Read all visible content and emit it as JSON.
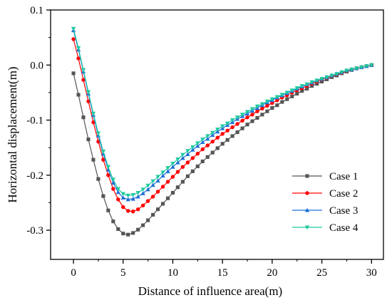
{
  "chart_data": {
    "type": "line",
    "xlabel": "Distance of influence area(m)",
    "ylabel": "Horizontal displacement(m)",
    "xlim": [
      -2.3,
      31.2
    ],
    "ylim": [
      -0.353,
      0.1
    ],
    "x_ticks": [
      0,
      5,
      10,
      15,
      20,
      25,
      30
    ],
    "y_ticks": [
      0.1,
      0.0,
      -0.1,
      -0.2,
      -0.3
    ],
    "x_tick_labels": [
      "0",
      "5",
      "10",
      "15",
      "20",
      "25",
      "30"
    ],
    "y_tick_labels": [
      "0.1",
      "0.0",
      "-0.1",
      "-0.2",
      "-0.3"
    ],
    "legend_position": "lower-right",
    "grid": false,
    "x": [
      0,
      0.5,
      1,
      1.5,
      2,
      2.5,
      3,
      3.5,
      4,
      4.5,
      5,
      5.5,
      6,
      6.5,
      7,
      7.5,
      8,
      8.5,
      9,
      9.5,
      10,
      10.5,
      11,
      11.5,
      12,
      12.5,
      13,
      13.5,
      14,
      14.5,
      15,
      15.5,
      16,
      16.5,
      17,
      17.5,
      18,
      18.5,
      19,
      19.5,
      20,
      20.5,
      21,
      21.5,
      22,
      22.5,
      23,
      23.5,
      24,
      24.5,
      25,
      25.5,
      26,
      26.5,
      27,
      27.5,
      28,
      28.5,
      29,
      29.5,
      30
    ],
    "series": [
      {
        "name": "Case 1",
        "color": "#555555",
        "marker": "square",
        "values": [
          -0.015,
          -0.054,
          -0.095,
          -0.135,
          -0.172,
          -0.207,
          -0.238,
          -0.264,
          -0.284,
          -0.298,
          -0.306,
          -0.308,
          -0.305,
          -0.299,
          -0.291,
          -0.282,
          -0.272,
          -0.262,
          -0.252,
          -0.242,
          -0.232,
          -0.222,
          -0.212,
          -0.202,
          -0.193,
          -0.184,
          -0.175,
          -0.167,
          -0.159,
          -0.151,
          -0.143,
          -0.136,
          -0.129,
          -0.122,
          -0.115,
          -0.108,
          -0.102,
          -0.096,
          -0.09,
          -0.084,
          -0.078,
          -0.073,
          -0.067,
          -0.062,
          -0.057,
          -0.052,
          -0.047,
          -0.043,
          -0.038,
          -0.034,
          -0.03,
          -0.026,
          -0.022,
          -0.019,
          -0.015,
          -0.012,
          -0.009,
          -0.006,
          -0.004,
          -0.002,
          0.0
        ]
      },
      {
        "name": "Case 2",
        "color": "#ff0000",
        "marker": "circle",
        "values": [
          0.047,
          0.012,
          -0.027,
          -0.066,
          -0.104,
          -0.139,
          -0.172,
          -0.2,
          -0.225,
          -0.244,
          -0.258,
          -0.265,
          -0.266,
          -0.262,
          -0.255,
          -0.247,
          -0.239,
          -0.23,
          -0.221,
          -0.212,
          -0.203,
          -0.194,
          -0.185,
          -0.177,
          -0.169,
          -0.161,
          -0.153,
          -0.146,
          -0.139,
          -0.132,
          -0.125,
          -0.119,
          -0.113,
          -0.107,
          -0.101,
          -0.095,
          -0.09,
          -0.084,
          -0.079,
          -0.074,
          -0.069,
          -0.064,
          -0.059,
          -0.055,
          -0.05,
          -0.046,
          -0.042,
          -0.038,
          -0.034,
          -0.03,
          -0.026,
          -0.023,
          -0.02,
          -0.017,
          -0.014,
          -0.011,
          -0.008,
          -0.006,
          -0.004,
          -0.002,
          0.0
        ]
      },
      {
        "name": "Case 3",
        "color": "#1f6fd6",
        "marker": "triangle-up",
        "values": [
          0.063,
          0.028,
          -0.012,
          -0.052,
          -0.091,
          -0.128,
          -0.161,
          -0.19,
          -0.214,
          -0.231,
          -0.241,
          -0.244,
          -0.243,
          -0.239,
          -0.233,
          -0.226,
          -0.218,
          -0.21,
          -0.201,
          -0.193,
          -0.185,
          -0.177,
          -0.169,
          -0.162,
          -0.154,
          -0.147,
          -0.14,
          -0.134,
          -0.127,
          -0.121,
          -0.115,
          -0.109,
          -0.104,
          -0.098,
          -0.093,
          -0.088,
          -0.083,
          -0.078,
          -0.073,
          -0.068,
          -0.064,
          -0.059,
          -0.055,
          -0.051,
          -0.047,
          -0.043,
          -0.039,
          -0.035,
          -0.032,
          -0.028,
          -0.025,
          -0.022,
          -0.019,
          -0.016,
          -0.013,
          -0.01,
          -0.008,
          -0.006,
          -0.004,
          -0.002,
          0.0
        ]
      },
      {
        "name": "Case 4",
        "color": "#1fc9a0",
        "marker": "triangle-down",
        "values": [
          0.066,
          0.031,
          -0.009,
          -0.049,
          -0.088,
          -0.124,
          -0.157,
          -0.185,
          -0.208,
          -0.225,
          -0.234,
          -0.237,
          -0.236,
          -0.232,
          -0.226,
          -0.219,
          -0.211,
          -0.203,
          -0.195,
          -0.187,
          -0.179,
          -0.171,
          -0.163,
          -0.156,
          -0.149,
          -0.142,
          -0.135,
          -0.129,
          -0.123,
          -0.117,
          -0.111,
          -0.106,
          -0.1,
          -0.095,
          -0.09,
          -0.085,
          -0.08,
          -0.075,
          -0.071,
          -0.066,
          -0.062,
          -0.058,
          -0.054,
          -0.05,
          -0.046,
          -0.042,
          -0.038,
          -0.035,
          -0.031,
          -0.028,
          -0.025,
          -0.022,
          -0.019,
          -0.016,
          -0.013,
          -0.01,
          -0.008,
          -0.006,
          -0.004,
          -0.002,
          0.0
        ]
      }
    ]
  }
}
